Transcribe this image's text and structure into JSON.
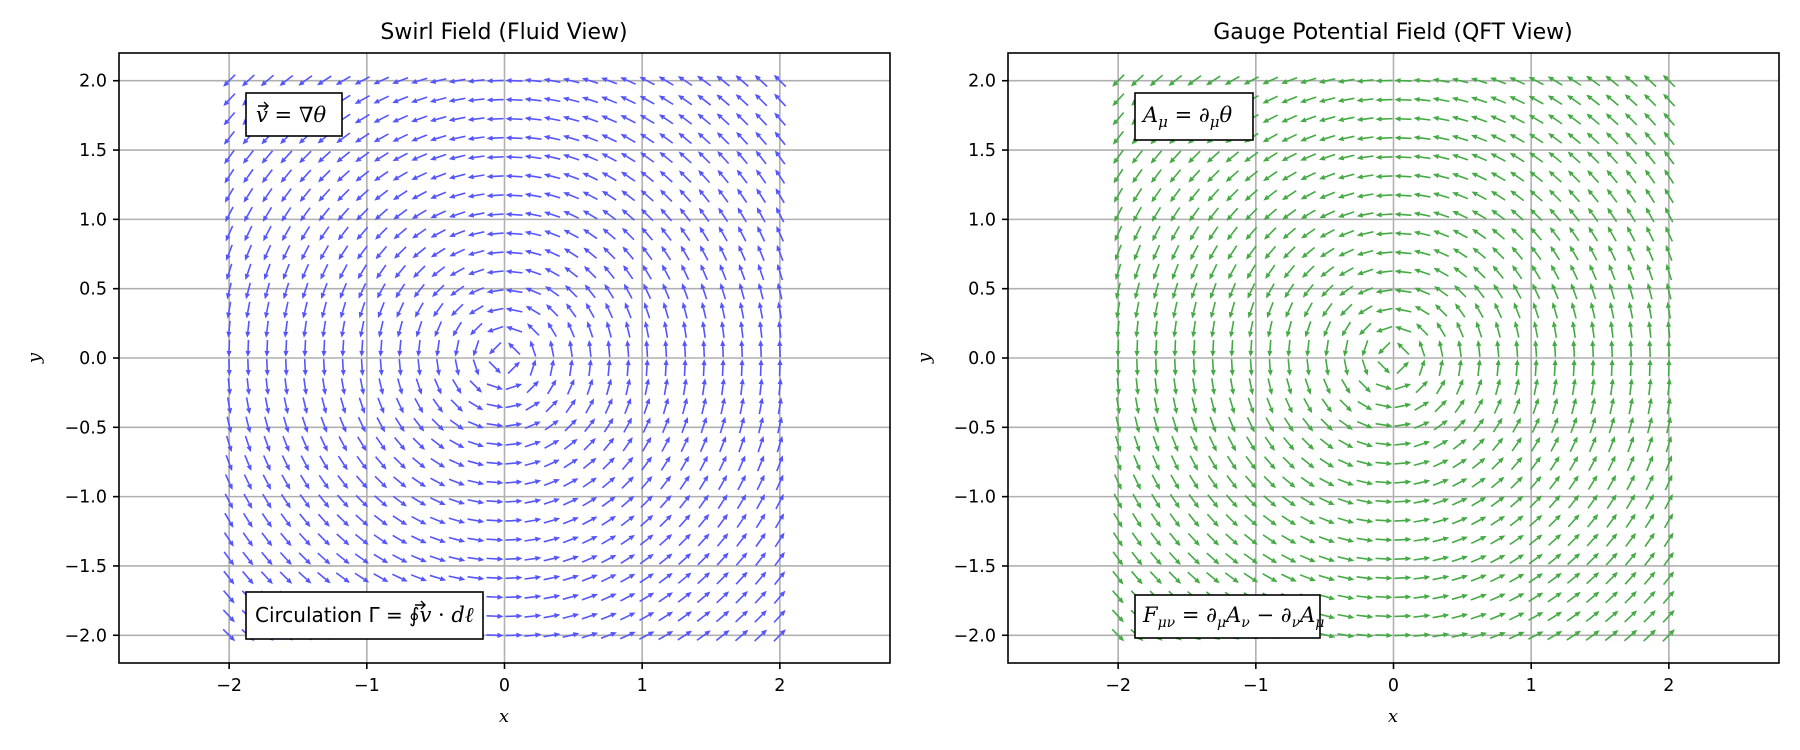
{
  "chart_data": [
    {
      "type": "quiver",
      "title": "Swirl Field (Fluid View)",
      "xlabel": "x",
      "ylabel": "y",
      "xlim": [
        -2.8,
        2.8
      ],
      "ylim": [
        -2.2,
        2.2
      ],
      "xticks": [
        -2,
        -1,
        0,
        1,
        2
      ],
      "xtick_labels": [
        "−2",
        "−1",
        "0",
        "1",
        "2"
      ],
      "yticks": [
        2.0,
        1.5,
        1.0,
        0.5,
        0.0,
        -0.5,
        -1.0,
        -1.5,
        -2.0
      ],
      "ytick_labels": [
        "2.0",
        "1.5",
        "1.0",
        "0.5",
        "0.0",
        "−0.5",
        "−1.0",
        "−1.5",
        "−2.0"
      ],
      "grid": true,
      "color": "#5555ff",
      "field": "v = ∇θ around a point vortex at the origin (θ = atan2(y, x)); unit-normalized arrows",
      "grid_points": {
        "x_range": [
          -2,
          2
        ],
        "y_range": [
          -2,
          2
        ],
        "n": 30
      },
      "annotations": [
        {
          "text_main": "v⃗ = ∇θ",
          "position": "top-left"
        },
        {
          "text_main": "Circulation Γ = ∮v⃗ · dℓ",
          "position": "bottom-left"
        }
      ]
    },
    {
      "type": "quiver",
      "title": "Gauge Potential Field (QFT View)",
      "xlabel": "x",
      "ylabel": "y",
      "xlim": [
        -2.8,
        2.8
      ],
      "ylim": [
        -2.2,
        2.2
      ],
      "xticks": [
        -2,
        -1,
        0,
        1,
        2
      ],
      "xtick_labels": [
        "−2",
        "−1",
        "0",
        "1",
        "2"
      ],
      "yticks": [
        2.0,
        1.5,
        1.0,
        0.5,
        0.0,
        -0.5,
        -1.0,
        -1.5,
        -2.0
      ],
      "ytick_labels": [
        "2.0",
        "1.5",
        "1.0",
        "0.5",
        "0.0",
        "−0.5",
        "−1.0",
        "−1.5",
        "−2.0"
      ],
      "grid": true,
      "color": "#44aa44",
      "field": "A_μ = ∂_μθ around a point vortex at the origin; same field as left panel",
      "grid_points": {
        "x_range": [
          -2,
          2
        ],
        "y_range": [
          -2,
          2
        ],
        "n": 30
      },
      "annotations": [
        {
          "text_main": "A_μ = ∂_μθ",
          "position": "top-left"
        },
        {
          "text_main": "F_μν = ∂_μA_ν − ∂_νA_μ",
          "position": "bottom-left"
        }
      ]
    }
  ]
}
